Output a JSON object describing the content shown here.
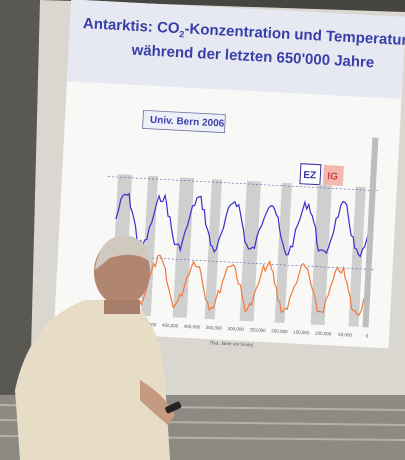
{
  "slide": {
    "title_line1_before": "Antarktis: CO",
    "title_subscript": "2",
    "title_line1_after": "-Konzentration und Temperatur",
    "title_line2": "während der letzten 650'000 Jahre",
    "source": "Univ. Bern 2006",
    "legend": [
      "EZ",
      "IG"
    ],
    "x_ticks": [
      "600,000",
      "550,000",
      "500,000",
      "450,000",
      "400,000",
      "350,000",
      "300,000",
      "250,000",
      "200,000",
      "150,000",
      "100,000",
      "50,000",
      "0"
    ],
    "x_axis_label": "(Tsd. Jahre vor heute)"
  }
}
